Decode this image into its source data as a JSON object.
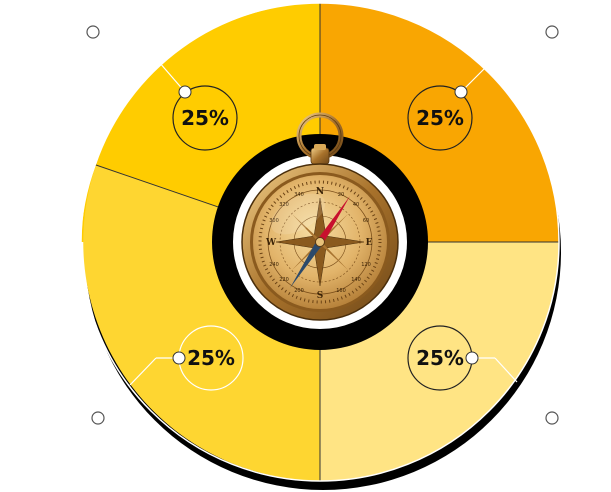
{
  "segments": [
    {
      "label": "25%",
      "value": 25,
      "color": "#FFCC00"
    },
    {
      "label": "25%",
      "value": 25,
      "color": "#F9A602"
    },
    {
      "label": "25%",
      "value": 25,
      "color": "#FFE484"
    },
    {
      "label": "25%",
      "value": 25,
      "color": "#FED631"
    }
  ],
  "compass": {
    "icon": "compass-icon",
    "cardinals": [
      "N",
      "E",
      "S",
      "W"
    ],
    "degree_marks": [
      "340",
      "20",
      "40",
      "60",
      "120",
      "140",
      "160",
      "200",
      "220",
      "240",
      "300",
      "320"
    ]
  },
  "colors": {
    "ring_outer": "#000000",
    "ring_inner": "#ffffff",
    "brass": "#C8953E"
  }
}
